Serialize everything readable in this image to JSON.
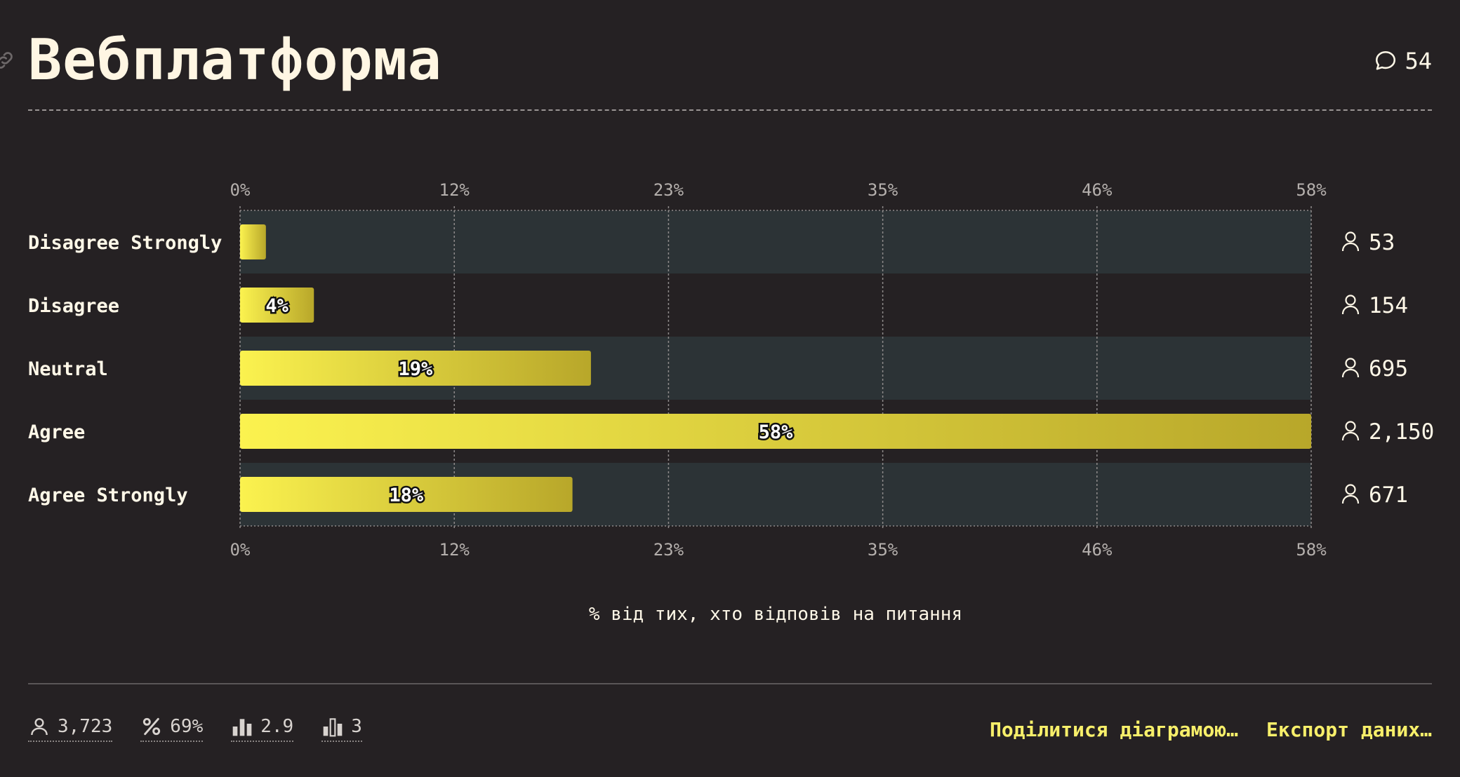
{
  "header": {
    "title": "Вебплатформа",
    "comment_count": "54"
  },
  "chart_data": {
    "type": "bar",
    "orientation": "horizontal",
    "title": "Вебплатформа",
    "categories": [
      "Disagree Strongly",
      "Disagree",
      "Neutral",
      "Agree",
      "Agree Strongly"
    ],
    "values": [
      1.4,
      4,
      19,
      58,
      18
    ],
    "value_labels": [
      "",
      "4%",
      "19%",
      "58%",
      "18%"
    ],
    "counts": [
      "53",
      "154",
      "695",
      "2,150",
      "671"
    ],
    "xlim": [
      0,
      58
    ],
    "x_ticks": [
      0,
      11.6,
      23.2,
      34.8,
      46.4,
      58
    ],
    "x_tick_labels": [
      "0%",
      "12%",
      "23%",
      "35%",
      "46%",
      "58%"
    ],
    "xlabel": "% від тих, хто відповів на питання",
    "ylabel": "",
    "grid": true,
    "bar_gradient": [
      "#fbf24f",
      "#b8a72a"
    ]
  },
  "footer": {
    "stats": [
      {
        "icon": "person-icon",
        "value": "3,723"
      },
      {
        "icon": "percent-icon",
        "value": "69%"
      },
      {
        "icon": "bar-mean-icon",
        "value": "2.9"
      },
      {
        "icon": "bar-median-icon",
        "value": "3"
      }
    ],
    "share_label": "Поділитися діаграмою…",
    "export_label": "Експорт даних…"
  }
}
